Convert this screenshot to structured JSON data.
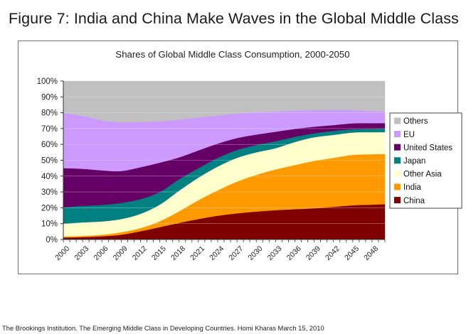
{
  "figure_title": "Figure 7:  India and China Make Waves in the Global Middle Class",
  "footer": "The Brookings Institution. The Emerging Middle Class in Developing Countries. Homi Kharas March 15, 2010",
  "chart_data": {
    "type": "area",
    "stacked": "percent",
    "title": "Shares of Global Middle Class Consumption, 2000-2050",
    "xlabel": "",
    "ylabel": "",
    "ylim": [
      0,
      100
    ],
    "y_ticks": [
      "0%",
      "10%",
      "20%",
      "30%",
      "40%",
      "50%",
      "60%",
      "70%",
      "80%",
      "90%",
      "100%"
    ],
    "x_tick_labels": [
      "2000",
      "2003",
      "2006",
      "2009",
      "2012",
      "2015",
      "2018",
      "2021",
      "2024",
      "2027",
      "2030",
      "2033",
      "2036",
      "2039",
      "2042",
      "2045",
      "2048"
    ],
    "x_range": [
      2000,
      2050
    ],
    "grid": "horizontal",
    "legend_position": "right",
    "x": [
      2000,
      2003,
      2006,
      2009,
      2012,
      2015,
      2018,
      2021,
      2024,
      2027,
      2030,
      2033,
      2036,
      2039,
      2042,
      2045,
      2048,
      2050
    ],
    "series": [
      {
        "name": "China",
        "color": "#7f0000",
        "values": [
          1.2,
          1.5,
          2.0,
          3.0,
          5.2,
          7.8,
          10.5,
          12.9,
          15.0,
          16.5,
          17.6,
          18.5,
          19.1,
          19.7,
          20.6,
          21.6,
          22.0,
          22.3
        ]
      },
      {
        "name": "India",
        "color": "#ff9900",
        "values": [
          0.7,
          0.8,
          1.0,
          1.6,
          2.0,
          3.7,
          7.3,
          11.9,
          16.0,
          20.0,
          23.2,
          25.7,
          27.9,
          29.9,
          30.9,
          31.8,
          31.8,
          31.7
        ]
      },
      {
        "name": "Other Asia",
        "color": "#ffffcc",
        "values": [
          8.0,
          8.5,
          8.4,
          8.3,
          9.0,
          10.5,
          13.0,
          14.2,
          15.0,
          15.0,
          14.2,
          13.4,
          14.5,
          14.9,
          14.5,
          14.1,
          13.9,
          13.7
        ]
      },
      {
        "name": "Japan",
        "color": "#008080",
        "values": [
          10.4,
          10.4,
          10.4,
          10.2,
          9.3,
          8.0,
          7.2,
          6.0,
          5.5,
          5.0,
          4.6,
          4.4,
          3.3,
          2.5,
          2.5,
          2.0,
          2.1,
          2.3
        ]
      },
      {
        "name": "United States",
        "color": "#660066",
        "values": [
          24.7,
          23.4,
          21.8,
          20.1,
          20.1,
          18.5,
          13.8,
          11.2,
          9.0,
          7.5,
          6.6,
          6.0,
          5.0,
          4.2,
          3.7,
          3.8,
          3.6,
          3.4
        ]
      },
      {
        "name": "EU",
        "color": "#cc99ff",
        "values": [
          35.0,
          33.4,
          31.6,
          30.8,
          28.6,
          26.1,
          23.8,
          20.9,
          17.7,
          15.5,
          14.1,
          12.8,
          11.5,
          10.4,
          9.4,
          8.3,
          7.6,
          7.5
        ]
      },
      {
        "name": "Others",
        "color": "#c0c0c0",
        "values": [
          20.0,
          22.0,
          24.8,
          26.0,
          25.8,
          25.4,
          24.4,
          22.9,
          21.8,
          20.5,
          19.7,
          19.2,
          18.7,
          18.4,
          18.4,
          18.4,
          19.0,
          19.1
        ]
      }
    ],
    "legend_order": [
      "Others",
      "EU",
      "United States",
      "Japan",
      "Other Asia",
      "India",
      "China"
    ]
  }
}
